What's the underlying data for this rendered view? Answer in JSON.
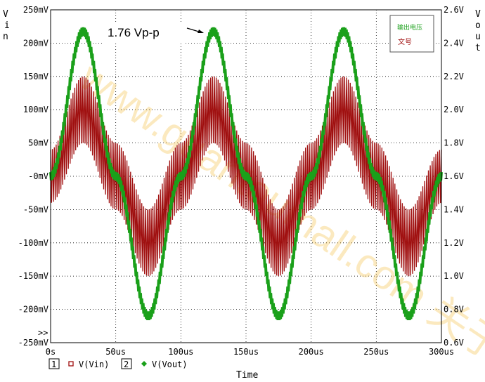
{
  "chart_data": {
    "type": "line",
    "xlabel": "Time",
    "ylabel_left": "Vin",
    "ylabel_right": "Vout",
    "x_range": [
      0,
      300
    ],
    "x_unit": "us",
    "x_ticks": [
      "0s",
      "50us",
      "100us",
      "150us",
      "200us",
      "250us",
      "300us"
    ],
    "y_left_range": [
      -250,
      250
    ],
    "y_left_unit": "mV",
    "y_left_ticks": [
      "250mV",
      "200mV",
      "150mV",
      "100mV",
      "50mV",
      "-0mV",
      "-50mV",
      "-100mV",
      "-150mV",
      "-200mV",
      "-250mV"
    ],
    "y_right_range": [
      0.6,
      2.6
    ],
    "y_right_unit": "V",
    "y_right_ticks": [
      "2.6V",
      "2.4V",
      "2.2V",
      "2.0V",
      "1.8V",
      "1.6V",
      "1.4V",
      "1.2V",
      "1.0V",
      "0.8V",
      "0.6V"
    ],
    "grid": true,
    "series": [
      {
        "name": "V(Vin)",
        "axis": "left",
        "marker": "square",
        "color": "#a01010",
        "x": [
          0,
          25,
          50,
          75,
          100,
          125,
          150,
          175,
          200,
          225,
          250,
          275,
          300
        ],
        "y_center": [
          0,
          100,
          0,
          -100,
          0,
          100,
          0,
          -100,
          0,
          100,
          0,
          -100,
          0
        ],
        "y_max": [
          40,
          150,
          50,
          -50,
          50,
          150,
          50,
          -50,
          50,
          150,
          50,
          -50,
          40
        ],
        "y_min": [
          -40,
          50,
          -50,
          -150,
          -50,
          50,
          -50,
          -150,
          -50,
          50,
          -50,
          -150,
          -40
        ]
      },
      {
        "name": "V(Vout)",
        "axis": "right",
        "marker": "diamond",
        "color": "#1aa01a",
        "x": [
          0,
          25,
          50,
          75,
          100,
          125,
          150,
          175,
          200,
          225,
          250,
          275,
          300
        ],
        "y_center": [
          1.6,
          2.47,
          1.6,
          0.76,
          1.6,
          2.47,
          1.6,
          0.76,
          1.6,
          2.47,
          1.6,
          0.76,
          1.6
        ]
      }
    ],
    "annotations": [
      {
        "text": "1.76 Vp-p"
      },
      {
        "text": "输出电压"
      },
      {
        "text": "文号"
      }
    ],
    "legend": {
      "items": [
        {
          "num": "1",
          "label": "V(Vin)"
        },
        {
          "num": "2",
          "label": "V(Vout)"
        }
      ],
      "more": ">>"
    },
    "watermark": "www.guantoumall.com  关于网"
  },
  "colors": {
    "vin": "#a01010",
    "vout": "#1aa01a",
    "grid": "#000000"
  }
}
